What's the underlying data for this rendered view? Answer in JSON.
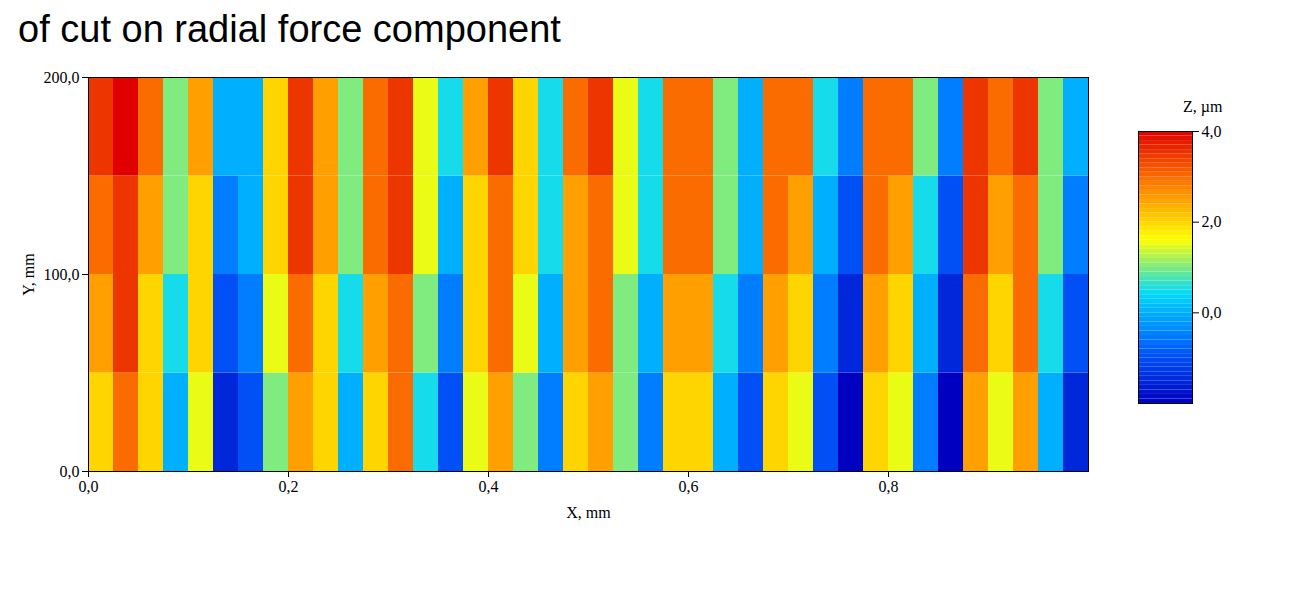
{
  "chart_data": {
    "type": "heatmap",
    "title": "of cut on radial force component",
    "x_label": "X, mm",
    "y_label": "Y, mm",
    "z_label": "Z, µm",
    "xlim": [
      0,
      1
    ],
    "xticks": [
      {
        "value": 0,
        "label": "0,0"
      },
      {
        "value": 0.2,
        "label": "0,2"
      },
      {
        "value": 0.4,
        "label": "0,4"
      },
      {
        "value": 0.6,
        "label": "0,6"
      },
      {
        "value": 0.8,
        "label": "0,8"
      }
    ],
    "ylim": [
      0,
      200
    ],
    "yticks": [
      {
        "value": 0,
        "label": "0,0"
      },
      {
        "value": 100,
        "label": "100,0"
      },
      {
        "value": 200,
        "label": "200,0"
      }
    ],
    "zlim": [
      -2,
      4
    ],
    "zticks": [
      {
        "value": 0,
        "label": "0,0"
      },
      {
        "value": 2,
        "label": "2,0"
      },
      {
        "value": 4,
        "label": "4,0"
      }
    ],
    "x_edges": [
      0,
      0.025,
      0.05,
      0.075,
      0.1,
      0.125,
      0.15,
      0.175,
      0.2,
      0.225,
      0.25,
      0.275,
      0.3,
      0.325,
      0.35,
      0.375,
      0.4,
      0.425,
      0.45,
      0.475,
      0.5,
      0.525,
      0.55,
      0.575,
      0.6,
      0.625,
      0.65,
      0.675,
      0.7,
      0.725,
      0.75,
      0.775,
      0.8,
      0.825,
      0.85,
      0.875,
      0.9,
      0.925,
      0.95,
      0.975,
      1
    ],
    "y_edges": [
      0,
      50,
      100,
      150,
      200
    ],
    "z": [
      [
        2.0,
        3.0,
        2.0,
        0.0,
        1.5,
        -1.5,
        -1.0,
        1.0,
        2.5,
        2.0,
        0.0,
        2.0,
        3.0,
        0.5,
        -1.0,
        1.5,
        2.5,
        1.0,
        -0.5,
        2.0,
        2.5,
        1.0,
        -0.5,
        2.0,
        2.0,
        0.0,
        -1.0,
        2.0,
        1.5,
        -1.0,
        -2.0,
        2.0,
        1.5,
        -0.5,
        -2.0,
        2.5,
        1.5,
        2.5,
        0.0,
        -1.5
      ],
      [
        2.5,
        3.5,
        2.0,
        0.5,
        2.0,
        -1.0,
        -0.5,
        1.5,
        3.0,
        2.0,
        0.5,
        2.5,
        3.0,
        1.0,
        -0.5,
        2.0,
        3.0,
        1.5,
        0.0,
        2.5,
        3.0,
        1.0,
        0.0,
        2.5,
        2.5,
        0.5,
        -0.5,
        2.5,
        2.0,
        -0.5,
        -1.5,
        2.5,
        2.0,
        0.0,
        -1.5,
        3.0,
        2.0,
        3.0,
        0.5,
        -1.0
      ],
      [
        3.0,
        3.5,
        2.5,
        1.0,
        2.0,
        -0.5,
        0.0,
        2.0,
        3.5,
        2.5,
        1.0,
        3.0,
        3.5,
        1.5,
        0.0,
        2.0,
        3.0,
        2.0,
        0.5,
        2.5,
        3.0,
        1.5,
        0.5,
        3.0,
        3.0,
        1.0,
        0.0,
        3.0,
        2.5,
        0.0,
        -1.0,
        3.0,
        2.5,
        0.5,
        -1.0,
        3.5,
        2.5,
        3.0,
        1.0,
        -0.5
      ],
      [
        3.5,
        4.0,
        3.0,
        1.0,
        2.5,
        0.0,
        0.0,
        2.0,
        3.5,
        2.5,
        1.0,
        3.0,
        3.5,
        1.5,
        0.5,
        2.5,
        3.5,
        2.0,
        0.5,
        3.0,
        3.5,
        1.5,
        0.5,
        3.0,
        3.0,
        1.0,
        0.0,
        3.0,
        3.0,
        0.5,
        -0.5,
        3.0,
        3.0,
        1.0,
        -0.5,
        3.5,
        3.0,
        3.5,
        1.0,
        0.0
      ]
    ]
  }
}
